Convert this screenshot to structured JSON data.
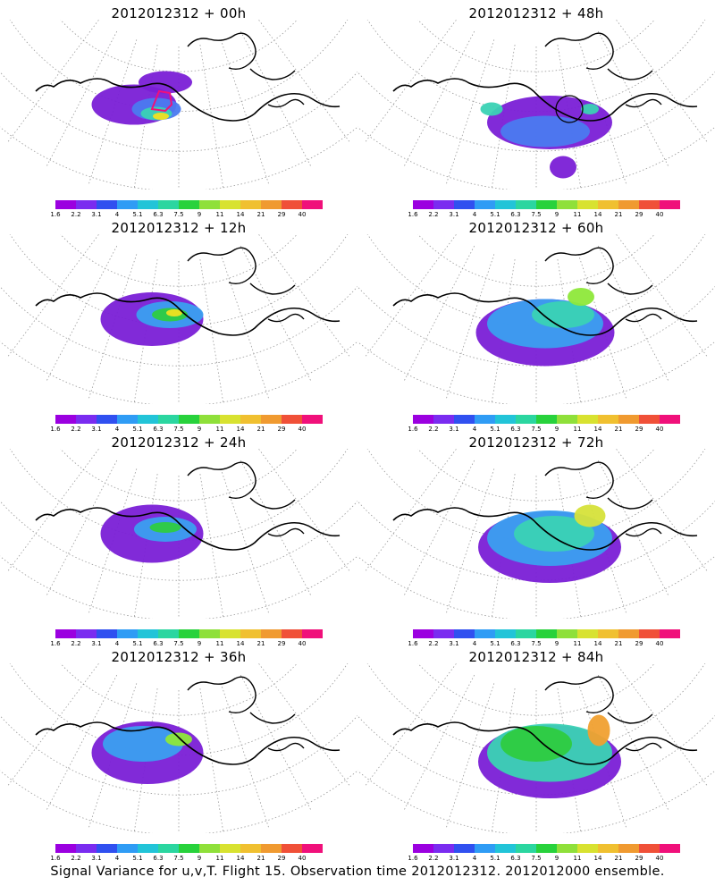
{
  "panels": [
    {
      "title": "2012012312 + 00h",
      "col": 0,
      "row": 0,
      "blobs": [
        [
          150,
          95,
          95,
          45,
          "#7a1fd6"
        ],
        [
          185,
          70,
          60,
          25,
          "#7a1fd6"
        ],
        [
          175,
          100,
          55,
          25,
          "#4a7af0"
        ],
        [
          175,
          105,
          35,
          15,
          "#3ad2b4"
        ],
        [
          180,
          108,
          18,
          8,
          "#f0e020"
        ]
      ],
      "circle": false,
      "polygon": true
    },
    {
      "title": "2012012312 + 48h",
      "col": 1,
      "row": 0,
      "blobs": [
        [
          215,
          115,
          140,
          60,
          "#7a1fd6"
        ],
        [
          210,
          125,
          100,
          35,
          "#4a7af0"
        ],
        [
          150,
          100,
          25,
          15,
          "#3ad2b4"
        ],
        [
          260,
          100,
          20,
          12,
          "#3ad2b4"
        ],
        [
          230,
          165,
          30,
          25,
          "#7a1fd6"
        ]
      ],
      "circle": true,
      "polygon": false
    },
    {
      "title": "2012012312 + 12h",
      "col": 0,
      "row": 1,
      "blobs": [
        [
          170,
          95,
          115,
          60,
          "#7a1fd6"
        ],
        [
          190,
          90,
          75,
          30,
          "#3a9ff0"
        ],
        [
          190,
          90,
          40,
          15,
          "#2ecc40"
        ],
        [
          195,
          88,
          18,
          8,
          "#f0e020"
        ]
      ],
      "circle": false,
      "polygon": false
    },
    {
      "title": "2012012312 + 60h",
      "col": 1,
      "row": 1,
      "blobs": [
        [
          210,
          110,
          155,
          75,
          "#7a1fd6"
        ],
        [
          210,
          100,
          130,
          55,
          "#3a9ff0"
        ],
        [
          230,
          90,
          70,
          30,
          "#3ad2b4"
        ],
        [
          250,
          70,
          30,
          20,
          "#8ee83a"
        ]
      ],
      "circle": false,
      "polygon": false
    },
    {
      "title": "2012012312 + 24h",
      "col": 0,
      "row": 2,
      "blobs": [
        [
          170,
          95,
          115,
          65,
          "#7a1fd6"
        ],
        [
          185,
          90,
          70,
          28,
          "#3a9ff0"
        ],
        [
          185,
          88,
          35,
          12,
          "#2ecc40"
        ]
      ],
      "circle": false,
      "polygon": false
    },
    {
      "title": "2012012312 + 72h",
      "col": 1,
      "row": 2,
      "blobs": [
        [
          215,
          110,
          160,
          80,
          "#7a1fd6"
        ],
        [
          215,
          100,
          140,
          62,
          "#3a9ff0"
        ],
        [
          220,
          95,
          90,
          40,
          "#3ad2b4"
        ],
        [
          260,
          75,
          35,
          25,
          "#d6e23a"
        ]
      ],
      "circle": false,
      "polygon": false
    },
    {
      "title": "2012012312 + 36h",
      "col": 0,
      "row": 3,
      "blobs": [
        [
          165,
          100,
          125,
          70,
          "#7a1fd6"
        ],
        [
          160,
          90,
          90,
          40,
          "#3a9ff0"
        ],
        [
          200,
          85,
          30,
          15,
          "#8ee83a"
        ]
      ],
      "circle": false,
      "polygon": false
    },
    {
      "title": "2012012312 + 84h",
      "col": 1,
      "row": 3,
      "blobs": [
        [
          215,
          110,
          160,
          82,
          "#7a1fd6"
        ],
        [
          215,
          100,
          140,
          65,
          "#3ad2b4"
        ],
        [
          200,
          90,
          80,
          40,
          "#2ecc40"
        ],
        [
          270,
          75,
          25,
          35,
          "#f0a030"
        ]
      ],
      "circle": false,
      "polygon": false
    }
  ],
  "colorbar": {
    "labels": [
      "1.6",
      "2.2",
      "3.1",
      "4",
      "5.1",
      "6.3",
      "7.5",
      "9",
      "11",
      "14",
      "21",
      "29",
      "40"
    ],
    "colors": [
      "#9b00e0",
      "#7a2cf0",
      "#3050f0",
      "#2f9cf5",
      "#22c4d8",
      "#2bd6a0",
      "#28d23c",
      "#8fe03a",
      "#d8e230",
      "#f0c030",
      "#f09a30",
      "#f05038",
      "#f0107a"
    ]
  },
  "caption": "Signal Variance for u,v,T. Flight 15. Observation time 2012012312. 2012012000 ensemble."
}
